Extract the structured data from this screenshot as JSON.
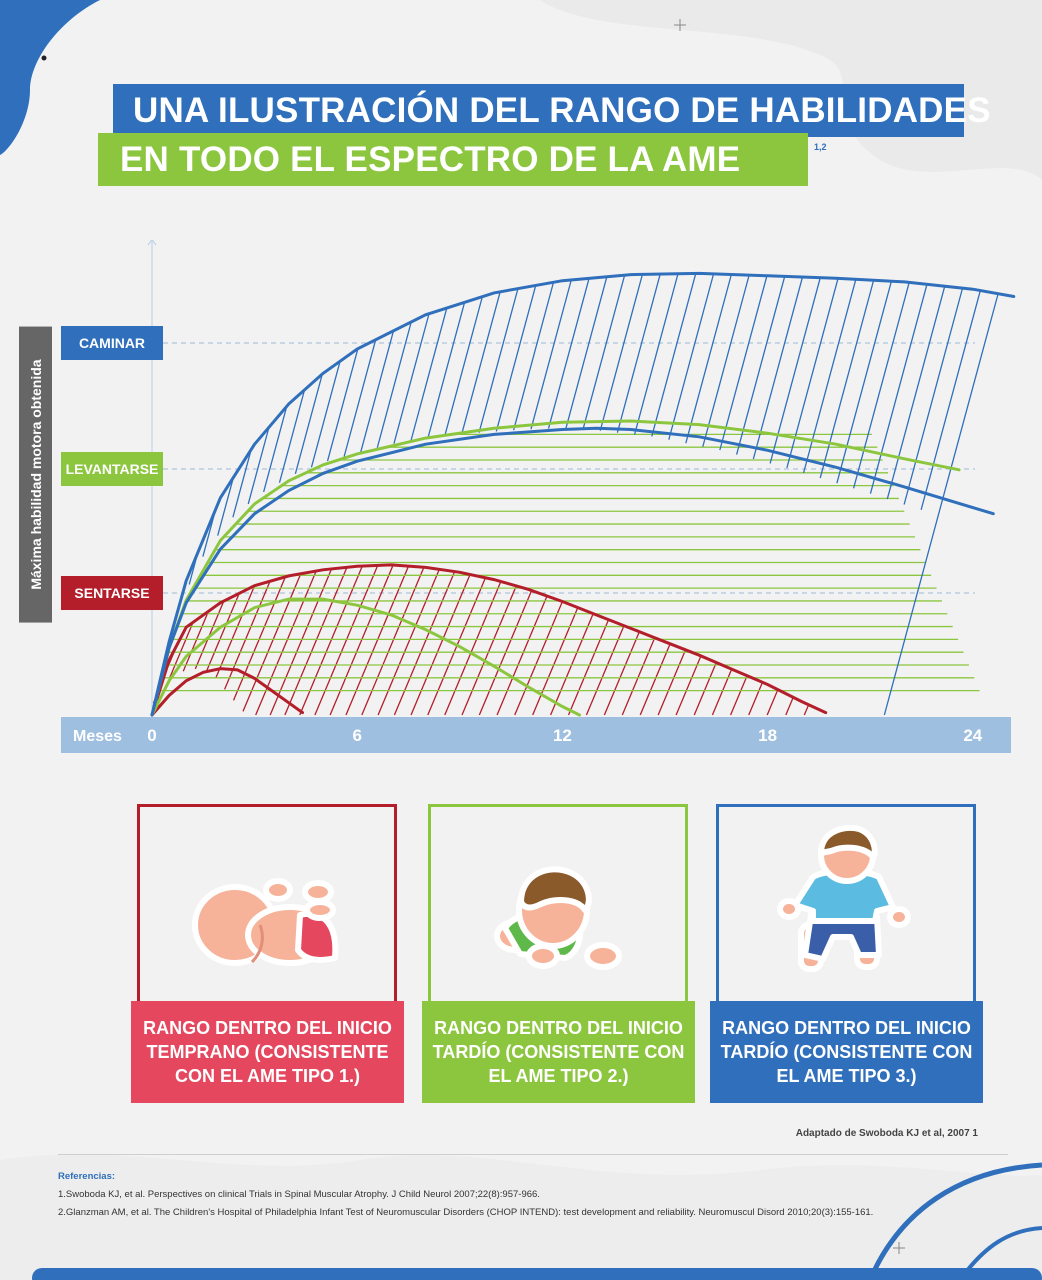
{
  "title": {
    "line1": "UNA ILUSTRACIÓN DEL RANGO DE HABILIDADES",
    "line2": "EN TODO EL ESPECTRO DE LA AME",
    "ref": "1,2"
  },
  "colors": {
    "blue": "#2f6fbb",
    "green": "#8cc63f",
    "red": "#b31e2a",
    "pink": "#e5475f",
    "axis_band": "#9fbfe0",
    "gray_label": "#666666"
  },
  "chart_data": {
    "type": "area",
    "ylabel": "Máxima habilidad  motora obtenida",
    "xlabel": "Meses",
    "x_ticks": [
      "0",
      "6",
      "12",
      "18",
      "24"
    ],
    "xlim": [
      0,
      24
    ],
    "ylim": [
      0,
      3.9
    ],
    "y_levels": [
      {
        "label": "CAMINAR",
        "value": 3,
        "color": "#2f6fbb"
      },
      {
        "label": "LEVANTARSE",
        "value": 2,
        "color": "#8cc63f"
      },
      {
        "label": "SENTARSE",
        "value": 1,
        "color": "#b31e2a"
      }
    ],
    "series": [
      {
        "color": "#b31e2a",
        "upper": [
          [
            0,
            0
          ],
          [
            0.5,
            0.45
          ],
          [
            1,
            0.72
          ],
          [
            2,
            0.92
          ],
          [
            3,
            1.06
          ],
          [
            4,
            1.14
          ],
          [
            5,
            1.19
          ],
          [
            6,
            1.22
          ],
          [
            7,
            1.23
          ],
          [
            8,
            1.21
          ],
          [
            9,
            1.17
          ],
          [
            10,
            1.11
          ],
          [
            11,
            1.03
          ],
          [
            12,
            0.93
          ],
          [
            13,
            0.82
          ],
          [
            14,
            0.71
          ],
          [
            15,
            0.6
          ],
          [
            16,
            0.49
          ],
          [
            17,
            0.37
          ],
          [
            18,
            0.25
          ],
          [
            19,
            0.11
          ],
          [
            19.7,
            0.02
          ]
        ],
        "lower": [
          [
            0,
            0
          ],
          [
            0.5,
            0.16
          ],
          [
            1,
            0.28
          ],
          [
            1.5,
            0.35
          ],
          [
            2,
            0.38
          ],
          [
            2.5,
            0.37
          ],
          [
            3,
            0.3
          ],
          [
            3.5,
            0.2
          ],
          [
            4,
            0.1
          ],
          [
            4.4,
            0.02
          ]
        ]
      },
      {
        "color": "#8cc63f",
        "upper": [
          [
            0,
            0
          ],
          [
            0.5,
            0.55
          ],
          [
            1,
            0.94
          ],
          [
            2,
            1.43
          ],
          [
            3,
            1.73
          ],
          [
            4,
            1.92
          ],
          [
            5,
            2.05
          ],
          [
            6,
            2.14
          ],
          [
            8,
            2.27
          ],
          [
            10,
            2.35
          ],
          [
            12,
            2.4
          ],
          [
            14,
            2.41
          ],
          [
            16,
            2.38
          ],
          [
            18,
            2.31
          ],
          [
            20,
            2.22
          ],
          [
            22,
            2.1
          ],
          [
            23.6,
            2.01
          ]
        ],
        "lower": [
          [
            0,
            0
          ],
          [
            0.5,
            0.28
          ],
          [
            1,
            0.48
          ],
          [
            2,
            0.72
          ],
          [
            3,
            0.88
          ],
          [
            4,
            0.95
          ],
          [
            5,
            0.95
          ],
          [
            6,
            0.9
          ],
          [
            7,
            0.82
          ],
          [
            8,
            0.7
          ],
          [
            9,
            0.56
          ],
          [
            10,
            0.4
          ],
          [
            11,
            0.23
          ],
          [
            12,
            0.07
          ],
          [
            12.5,
            0
          ]
        ]
      },
      {
        "color": "#2f6fbb",
        "upper": [
          [
            0,
            0
          ],
          [
            0.5,
            0.6
          ],
          [
            1,
            1.1
          ],
          [
            2,
            1.78
          ],
          [
            3,
            2.22
          ],
          [
            4,
            2.55
          ],
          [
            5,
            2.8
          ],
          [
            6,
            3.0
          ],
          [
            8,
            3.28
          ],
          [
            10,
            3.46
          ],
          [
            12,
            3.56
          ],
          [
            14,
            3.61
          ],
          [
            16,
            3.62
          ],
          [
            18,
            3.6
          ],
          [
            20,
            3.58
          ],
          [
            22,
            3.55
          ],
          [
            24,
            3.49
          ],
          [
            25.2,
            3.43
          ]
        ],
        "lower": [
          [
            0,
            0
          ],
          [
            0.5,
            0.55
          ],
          [
            1,
            0.92
          ],
          [
            2,
            1.36
          ],
          [
            3,
            1.65
          ],
          [
            4,
            1.84
          ],
          [
            5,
            1.98
          ],
          [
            6,
            2.08
          ],
          [
            8,
            2.22
          ],
          [
            10,
            2.3
          ],
          [
            12,
            2.34
          ],
          [
            13,
            2.35
          ],
          [
            14,
            2.34
          ],
          [
            16,
            2.28
          ],
          [
            18,
            2.17
          ],
          [
            20,
            2.03
          ],
          [
            22,
            1.87
          ],
          [
            24,
            1.7
          ],
          [
            24.6,
            1.65
          ]
        ]
      }
    ]
  },
  "cards": [
    {
      "label": "RANGO DENTRO DEL INICIO TEMPRANO (CONSISTENTE CON EL AME TIPO 1.)",
      "border": "#b31e2a",
      "fill": "#e5475f",
      "icon": "baby-lying-icon"
    },
    {
      "label": "RANGO DENTRO DEL INICIO TARDÍO (CONSISTENTE CON EL AME TIPO 2.)",
      "border": "#8cc63f",
      "fill": "#8cc63f",
      "icon": "toddler-crawling-icon"
    },
    {
      "label": "RANGO DENTRO DEL INICIO TARDÍO (CONSISTENTE CON EL AME TIPO 3.)",
      "border": "#2f6fbb",
      "fill": "#2f6fbb",
      "icon": "child-walking-icon"
    }
  ],
  "source_note": "Adaptado de Swoboda KJ et al, 2007 1",
  "references": {
    "title": "Referencias:",
    "items": [
      "1.Swoboda KJ, et al. Perspectives on clinical Trials in Spinal Muscular Atrophy. J Child Neurol 2007;22(8):957-966.",
      "2.Glanzman AM, et al. The Children's Hospital of Philadelphia Infant Test of Neuromuscular Disorders (CHOP INTEND): test development and reliability. Neuromuscul Disord 2010;20(3):155-161."
    ]
  }
}
